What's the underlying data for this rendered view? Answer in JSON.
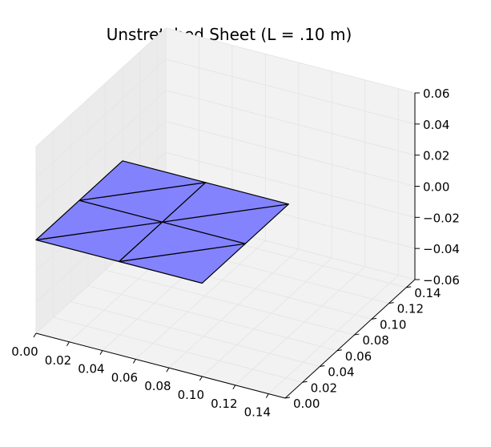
{
  "chart_data": {
    "type": "surface3d",
    "title": "Unstretched Sheet (L = .10 m)",
    "xlabel": "",
    "ylabel": "",
    "zlabel": "",
    "xlim": [
      0.0,
      0.15
    ],
    "ylim": [
      0.0,
      0.15
    ],
    "zlim": [
      -0.06,
      0.06
    ],
    "x_ticks": [
      "0.00",
      "0.02",
      "0.04",
      "0.06",
      "0.08",
      "0.10",
      "0.12",
      "0.14"
    ],
    "y_ticks": [
      "0.00",
      "0.02",
      "0.04",
      "0.06",
      "0.08",
      "0.10",
      "0.12",
      "0.14"
    ],
    "z_ticks": [
      "0.06",
      "0.04",
      "0.02",
      "0.00",
      "−0.02",
      "−0.04",
      "−0.06"
    ],
    "grid": true,
    "face_color": "#7777ff",
    "edge_color": "#000000",
    "pane_color": "#f2f2f2",
    "grid_color": "#e6e6e6",
    "sheet": {
      "z": 0.0,
      "vertices": [
        [
          0.0,
          0.0
        ],
        [
          0.05,
          0.0
        ],
        [
          0.1,
          0.0
        ],
        [
          0.0,
          0.05
        ],
        [
          0.05,
          0.05
        ],
        [
          0.1,
          0.05
        ],
        [
          0.0,
          0.1
        ],
        [
          0.05,
          0.1
        ],
        [
          0.1,
          0.1
        ]
      ],
      "triangles": [
        [
          0,
          1,
          4
        ],
        [
          0,
          4,
          3
        ],
        [
          1,
          2,
          5
        ],
        [
          1,
          5,
          4
        ],
        [
          3,
          4,
          7
        ],
        [
          3,
          7,
          6
        ],
        [
          4,
          5,
          8
        ],
        [
          4,
          8,
          7
        ]
      ]
    }
  }
}
